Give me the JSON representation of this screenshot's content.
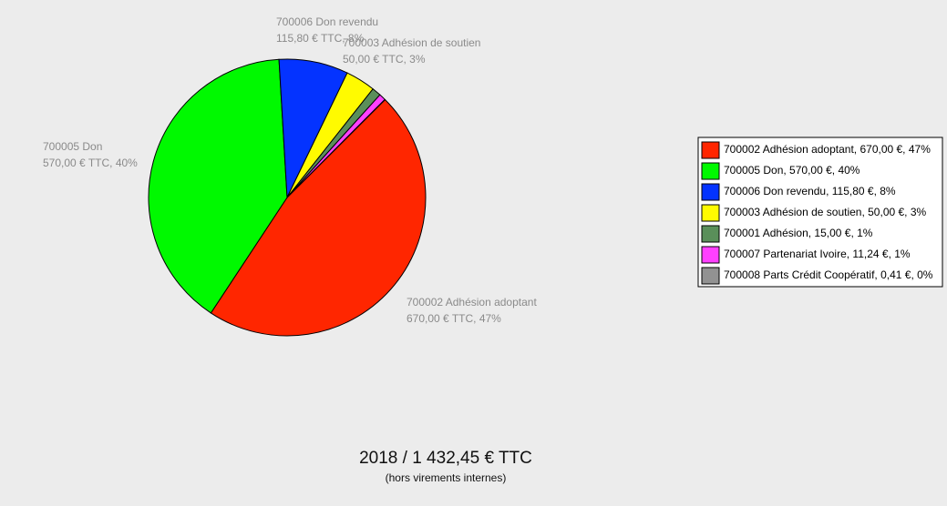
{
  "chart_data": {
    "type": "pie",
    "title": "2018 / 1 432,45 €  TTC",
    "subtitle": "(hors virements internes)",
    "categories": [
      "700002 Adhésion adoptant",
      "700005 Don",
      "700006 Don revendu",
      "700003 Adhésion de soutien",
      "700001 Adhésion",
      "700007 Partenariat Ivoire",
      "700008 Parts Crédit Coopératif"
    ],
    "values": [
      670,
      570,
      115.8,
      50,
      15,
      11.24,
      0.41
    ],
    "value_labels": [
      "670,00 € TTC, 47%",
      "570,00 € TTC, 40%",
      "115,80 € TTC, 8%",
      "50,00 € TTC, 3%",
      null,
      null,
      null
    ],
    "legend_labels": [
      "700002 Adhésion adoptant, 670,00 €, 47%",
      "700005 Don, 570,00 €, 40%",
      "700006 Don revendu, 115,80 €, 8%",
      "700003 Adhésion de soutien, 50,00 €, 3%",
      "700001 Adhésion, 15,00 €, 1%",
      "700007 Partenariat Ivoire, 11,24 €, 1%",
      "700008 Parts Crédit Coopératif, 0,41 €, 0%"
    ],
    "colors": [
      "#ff2600",
      "#00f900",
      "#0433ff",
      "#fffb00",
      "#5a8f5a",
      "#ff40ff",
      "#929292"
    ]
  }
}
